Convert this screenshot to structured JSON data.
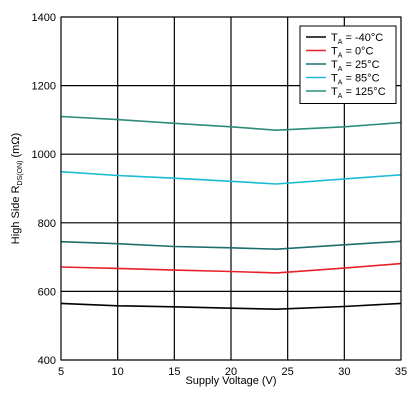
{
  "chart_data": {
    "type": "line",
    "title": "",
    "xlabel": "Supply Voltage (V)",
    "ylabel": {
      "prefix": "High Side R",
      "subscript": "DS(ON)",
      "suffix": " (mΩ)"
    },
    "xlim": [
      5,
      35
    ],
    "ylim": [
      400,
      1400
    ],
    "xticks": [
      5,
      10,
      15,
      20,
      25,
      30,
      35
    ],
    "yticks": [
      400,
      600,
      800,
      1000,
      1200,
      1400
    ],
    "grid": true,
    "legend_position": "top-right",
    "x": [
      5,
      10,
      15,
      20,
      24,
      30,
      35
    ],
    "series": [
      {
        "name": {
          "main": "T",
          "sub": "A",
          "rest": " = -40°C"
        },
        "color": "#000000",
        "values": [
          565,
          558,
          555,
          551,
          548,
          556,
          565
        ]
      },
      {
        "name": {
          "main": "T",
          "sub": "A",
          "rest": " = 0°C"
        },
        "color": "#e8202a",
        "values": [
          671,
          667,
          662,
          658,
          654,
          668,
          681
        ]
      },
      {
        "name": {
          "main": "T",
          "sub": "A",
          "rest": " = 25°C"
        },
        "color": "#1e6e6e",
        "values": [
          745,
          739,
          731,
          727,
          723,
          736,
          746
        ]
      },
      {
        "name": {
          "main": "T",
          "sub": "A",
          "rest": " = 85°C"
        },
        "color": "#19bcd4",
        "values": [
          949,
          938,
          930,
          921,
          913,
          928,
          940
        ]
      },
      {
        "name": {
          "main": "T",
          "sub": "A",
          "rest": " = 125°C"
        },
        "color": "#2e8b7a",
        "values": [
          1110,
          1101,
          1090,
          1080,
          1070,
          1080,
          1092
        ]
      }
    ]
  }
}
